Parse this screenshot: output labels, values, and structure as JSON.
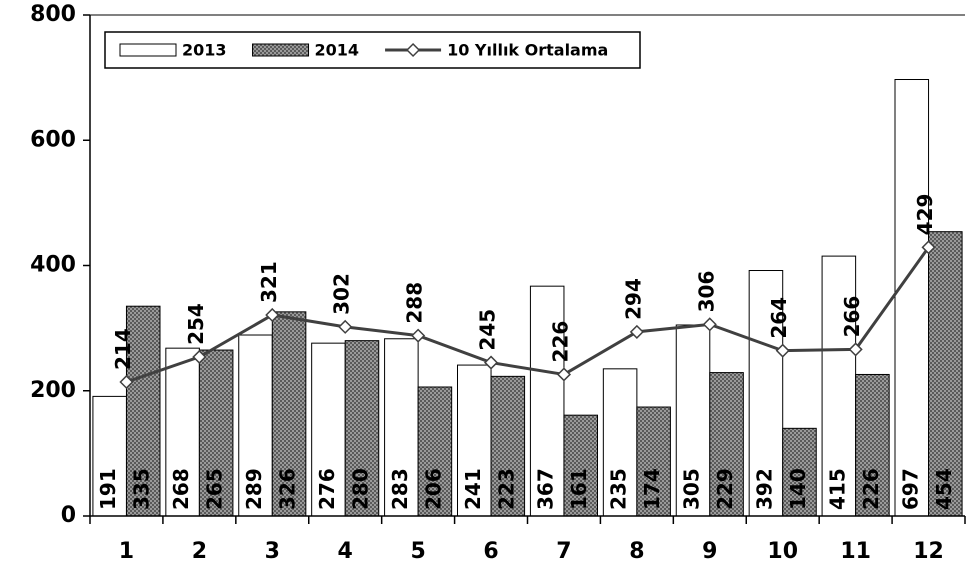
{
  "chart_data": {
    "type": "bar",
    "categories": [
      "1",
      "2",
      "3",
      "4",
      "5",
      "6",
      "7",
      "8",
      "9",
      "10",
      "11",
      "12"
    ],
    "series": [
      {
        "name": "2013",
        "color": "#ffffff",
        "values": [
          191,
          268,
          289,
          276,
          283,
          241,
          367,
          235,
          305,
          392,
          415,
          697
        ]
      },
      {
        "name": "2014",
        "color": "#8c8c8c",
        "values": [
          335,
          265,
          326,
          280,
          206,
          223,
          161,
          174,
          229,
          140,
          226,
          454
        ]
      },
      {
        "name": "10 Yıllık Ortalama",
        "type": "line",
        "color": "#404040",
        "values": [
          214,
          254,
          321,
          302,
          288,
          245,
          226,
          294,
          306,
          264,
          266,
          429
        ]
      }
    ],
    "ylim": [
      0,
      800
    ],
    "yticks": [
      0,
      200,
      400,
      600,
      800
    ],
    "grid": false,
    "legend": "top-left"
  }
}
